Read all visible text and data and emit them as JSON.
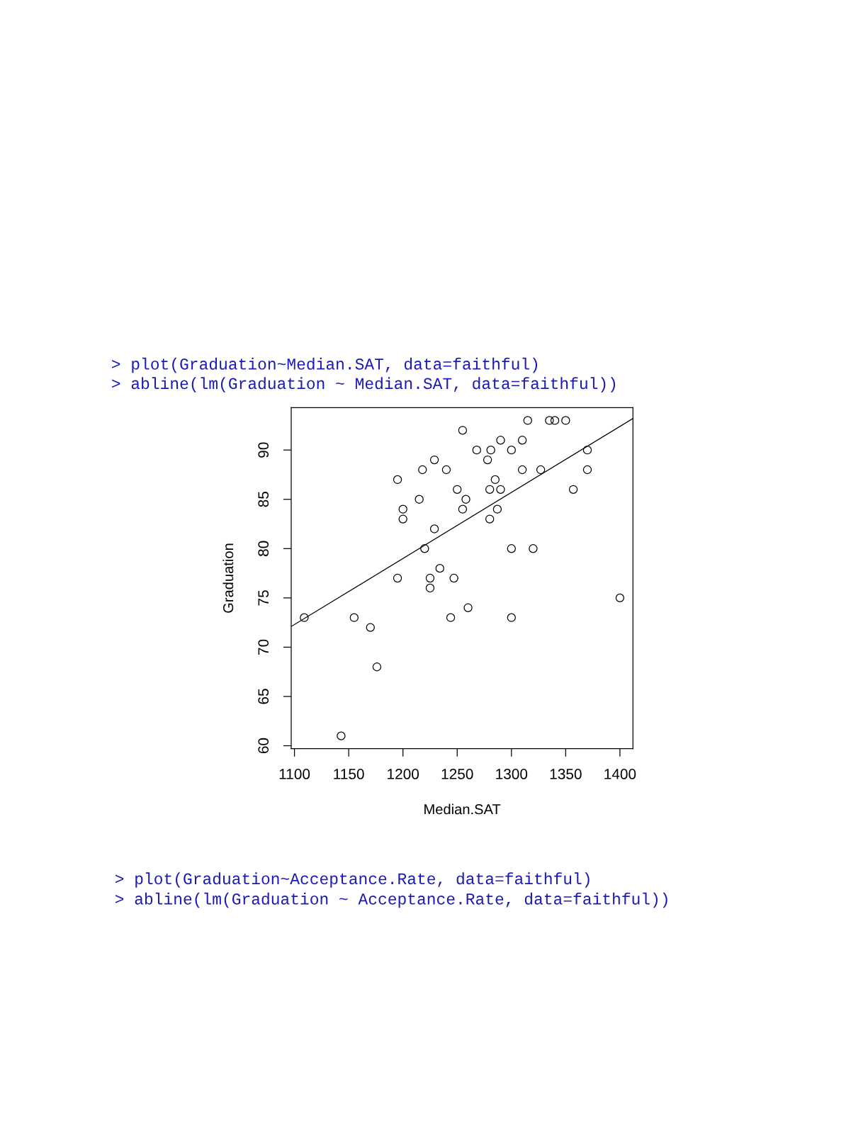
{
  "chart_data": {
    "type": "scatter",
    "xlabel": "Median.SAT",
    "ylabel": "Graduation",
    "annotations": [
      "> plot(Graduation~Median.SAT, data=faithful)",
      "> abline(lm(Graduation ~ Median.SAT, data=faithful))",
      "> plot(Graduation~Acceptance.Rate, data=faithful)",
      "> abline(lm(Graduation ~ Acceptance.Rate, data=faithful))"
    ],
    "xlim": [
      1097,
      1412
    ],
    "ylim": [
      59.7,
      94.3
    ],
    "xticks": [
      1100,
      1150,
      1200,
      1250,
      1300,
      1350,
      1400
    ],
    "yticks": [
      60,
      65,
      70,
      75,
      80,
      85,
      90
    ],
    "series": [
      {
        "marker": "circle",
        "color": "#000000",
        "x": [
          1109,
          1143,
          1155,
          1170,
          1176,
          1195,
          1195,
          1200,
          1200,
          1215,
          1218,
          1220,
          1225,
          1225,
          1229,
          1229,
          1234,
          1240,
          1244,
          1247,
          1250,
          1255,
          1255,
          1258,
          1260,
          1268,
          1281,
          1278,
          1290,
          1300,
          1310,
          1315,
          1335,
          1340,
          1350,
          1310,
          1327,
          1370,
          1370,
          1285,
          1280,
          1290,
          1357,
          1287,
          1280,
          1300,
          1320,
          1300,
          1400
        ],
        "values": [
          73,
          61,
          73,
          72,
          68,
          87,
          77,
          84,
          83,
          85,
          88,
          80,
          77,
          76,
          89,
          82,
          78,
          88,
          73,
          77,
          86,
          92,
          84,
          85,
          74,
          90,
          90,
          89,
          91,
          90,
          91,
          93,
          93,
          93,
          93,
          88,
          88,
          90,
          88,
          87,
          86,
          86,
          86,
          84,
          83,
          80,
          80,
          73,
          75
        ]
      },
      {
        "type": "line",
        "color": "#000000",
        "x": [
          1097,
          1412
        ],
        "values": [
          72.1,
          93.2
        ]
      }
    ]
  }
}
